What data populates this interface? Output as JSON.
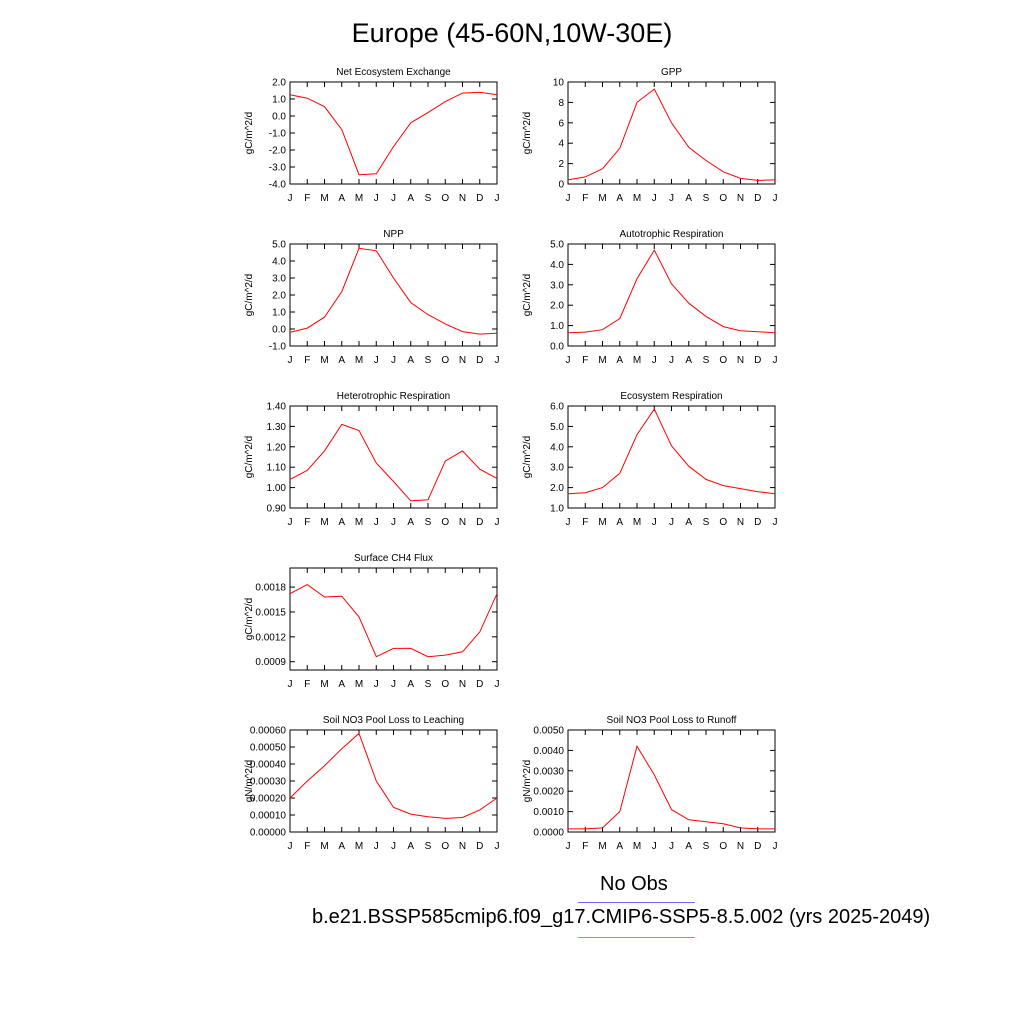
{
  "title": "Europe (45-60N,10W-30E)",
  "legend": {
    "obs_label": "No Obs",
    "case_label": "b.e21.BSSP585cmip6.f09_g17.CMIP6-SSP5-8.5.002 (yrs 2025-2049)",
    "obs_color": "#6b6bff",
    "case_color": "#ff6b6b"
  },
  "line_color": "#ff0000",
  "month_labels": [
    "J",
    "F",
    "M",
    "A",
    "M",
    "J",
    "J",
    "A",
    "S",
    "O",
    "N",
    "D",
    "J"
  ],
  "chart_data": [
    {
      "type": "line",
      "title": "Net Ecosystem Exchange",
      "ylabel": "gC/m^2/d",
      "ylim": [
        -4.0,
        2.0
      ],
      "yticks": [
        2.0,
        1.0,
        0.0,
        -1.0,
        -2.0,
        -3.0,
        -4.0
      ],
      "ytick_labels": [
        "2.0",
        "1.0",
        "0.0",
        "-1.0",
        "-2.0",
        "-3.0",
        "-4.0"
      ],
      "values": [
        1.25,
        1.05,
        0.55,
        -0.8,
        -3.45,
        -3.4,
        -1.8,
        -0.4,
        0.2,
        0.85,
        1.35,
        1.4,
        1.25
      ]
    },
    {
      "type": "line",
      "title": "GPP",
      "ylabel": "gC/m^2/d",
      "ylim": [
        0,
        10
      ],
      "yticks": [
        10,
        8,
        6,
        4,
        2,
        0
      ],
      "ytick_labels": [
        "10",
        "8",
        "6",
        "4",
        "2",
        "0"
      ],
      "values": [
        0.4,
        0.7,
        1.5,
        3.5,
        8.0,
        9.3,
        6.0,
        3.6,
        2.3,
        1.2,
        0.55,
        0.35,
        0.4
      ]
    },
    {
      "type": "line",
      "title": "NPP",
      "ylabel": "gC/m^2/d",
      "ylim": [
        -1.0,
        5.0
      ],
      "yticks": [
        5.0,
        4.0,
        3.0,
        2.0,
        1.0,
        0.0,
        -1.0
      ],
      "ytick_labels": [
        "5.0",
        "4.0",
        "3.0",
        "2.0",
        "1.0",
        "0.0",
        "-1.0"
      ],
      "values": [
        -0.2,
        0.05,
        0.7,
        2.2,
        4.75,
        4.6,
        3.0,
        1.55,
        0.85,
        0.3,
        -0.15,
        -0.3,
        -0.25
      ]
    },
    {
      "type": "line",
      "title": "Autotrophic Respiration",
      "ylabel": "gC/m^2/d",
      "ylim": [
        0.0,
        5.0
      ],
      "yticks": [
        5.0,
        4.0,
        3.0,
        2.0,
        1.0,
        0.0
      ],
      "ytick_labels": [
        "5.0",
        "4.0",
        "3.0",
        "2.0",
        "1.0",
        "0.0"
      ],
      "values": [
        0.65,
        0.68,
        0.8,
        1.35,
        3.3,
        4.7,
        3.05,
        2.1,
        1.45,
        0.95,
        0.75,
        0.7,
        0.65
      ]
    },
    {
      "type": "line",
      "title": "Heterotrophic Respiration",
      "ylabel": "gC/m^2/d",
      "ylim": [
        0.9,
        1.4
      ],
      "yticks": [
        1.4,
        1.3,
        1.2,
        1.1,
        1.0,
        0.9
      ],
      "ytick_labels": [
        "1.40",
        "1.30",
        "1.20",
        "1.10",
        "1.00",
        "0.90"
      ],
      "values": [
        1.04,
        1.085,
        1.18,
        1.31,
        1.28,
        1.12,
        1.03,
        0.935,
        0.94,
        1.13,
        1.18,
        1.09,
        1.045
      ]
    },
    {
      "type": "line",
      "title": "Ecosystem Respiration",
      "ylabel": "gC/m^2/d",
      "ylim": [
        1.0,
        6.0
      ],
      "yticks": [
        6.0,
        5.0,
        4.0,
        3.0,
        2.0,
        1.0
      ],
      "ytick_labels": [
        "6.0",
        "5.0",
        "4.0",
        "3.0",
        "2.0",
        "1.0"
      ],
      "values": [
        1.7,
        1.75,
        2.0,
        2.7,
        4.6,
        5.85,
        4.05,
        3.05,
        2.4,
        2.1,
        1.95,
        1.8,
        1.7
      ]
    },
    {
      "type": "line",
      "title": "Surface CH4 Flux",
      "ylabel": "gC/m^2/d",
      "ylim": [
        0.0008,
        0.00203
      ],
      "yticks": [
        0.0018,
        0.0015,
        0.0012,
        0.0009
      ],
      "ytick_labels": [
        "0.0018",
        "0.0015",
        "0.0012",
        "0.0009"
      ],
      "values": [
        0.00172,
        0.00183,
        0.00168,
        0.00169,
        0.00144,
        0.00096,
        0.00106,
        0.00106,
        0.00096,
        0.00098,
        0.00102,
        0.00126,
        0.00172
      ]
    },
    null,
    {
      "type": "line",
      "title": "Soil NO3 Pool Loss to Leaching",
      "ylabel": "gN/m^2/d",
      "ylim": [
        0.0,
        0.0006
      ],
      "yticks": [
        0.0006,
        0.0005,
        0.0004,
        0.0003,
        0.0002,
        0.0001,
        0.0
      ],
      "ytick_labels": [
        "0.00060",
        "0.00050",
        "0.00040",
        "0.00030",
        "0.00020",
        "0.00010",
        "0.00000"
      ],
      "values": [
        0.0002,
        0.0003,
        0.00039,
        0.00049,
        0.00058,
        0.0003,
        0.000145,
        0.000105,
        9e-05,
        8e-05,
        8.5e-05,
        0.00013,
        0.0002
      ]
    },
    {
      "type": "line",
      "title": "Soil NO3 Pool Loss to Runoff",
      "ylabel": "gN/m^2/d",
      "ylim": [
        0.0,
        0.005
      ],
      "yticks": [
        0.005,
        0.004,
        0.003,
        0.002,
        0.001,
        0.0
      ],
      "ytick_labels": [
        "0.0050",
        "0.0040",
        "0.0030",
        "0.0020",
        "0.0010",
        "0.0000"
      ],
      "values": [
        0.00015,
        0.00015,
        0.0002,
        0.001,
        0.0042,
        0.0028,
        0.0011,
        0.0006,
        0.0005,
        0.0004,
        0.0002,
        0.00015,
        0.00015
      ]
    }
  ]
}
